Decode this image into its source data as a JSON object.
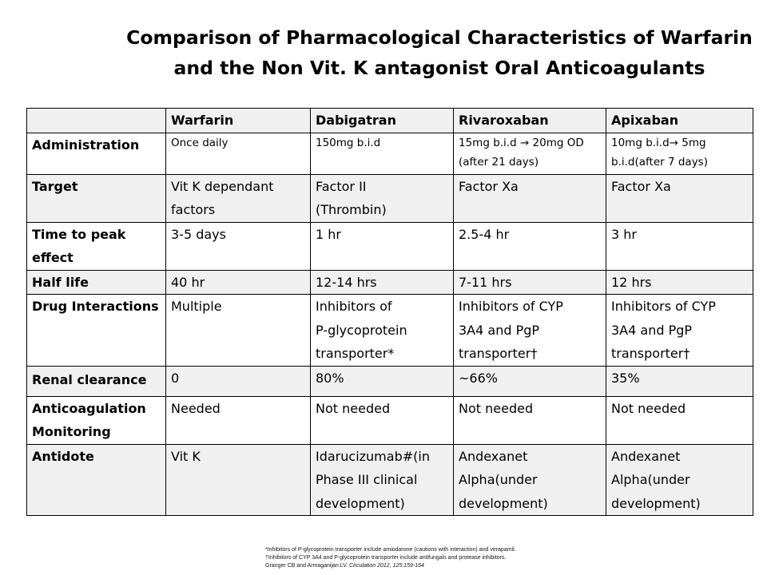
{
  "title": {
    "line1": "Comparison of Pharmacological Characteristics of Warfarin",
    "line2": "and the Non Vit. K antagonist Oral Anticoagulants"
  },
  "table": {
    "columns": [
      "",
      "Warfarin",
      "Dabigatran",
      "Rivaroxaban",
      "Apixaban"
    ],
    "rows": [
      {
        "label": [
          "Administration"
        ],
        "cells": [
          [
            "Once daily"
          ],
          [
            "150mg b.i.d"
          ],
          [
            "15mg b.i.d → 20mg OD",
            "(after 21 days)"
          ],
          [
            "10mg b.i.d→ 5mg",
            "b.i.d(after 7 days)"
          ]
        ]
      },
      {
        "label": [
          "Target"
        ],
        "cells": [
          [
            "Vit K dependant",
            "factors"
          ],
          [
            "Factor II",
            "(Thrombin)"
          ],
          [
            "Factor Xa"
          ],
          [
            "Factor Xa"
          ]
        ]
      },
      {
        "label": [
          "Time to peak",
          "effect"
        ],
        "cells": [
          [
            "3-5 days"
          ],
          [
            "1 hr"
          ],
          [
            "2.5-4 hr"
          ],
          [
            "3 hr"
          ]
        ]
      },
      {
        "label": [
          "Half life"
        ],
        "cells": [
          [
            "40 hr"
          ],
          [
            "12-14 hrs"
          ],
          [
            "7-11 hrs"
          ],
          [
            "12 hrs"
          ]
        ]
      },
      {
        "label": [
          "Drug Interactions"
        ],
        "cells": [
          [
            "Multiple"
          ],
          [
            "Inhibitors of",
            "P-glycoprotein",
            "transporter*"
          ],
          [
            "Inhibitors of CYP",
            "3A4 and PgP",
            "transporter†"
          ],
          [
            "Inhibitors of CYP",
            "3A4 and PgP",
            "transporter†"
          ]
        ]
      },
      {
        "label": [
          "Renal clearance"
        ],
        "cells": [
          [
            "0"
          ],
          [
            "80%"
          ],
          [
            "~66%"
          ],
          [
            "35%"
          ]
        ]
      },
      {
        "label": [
          "Anticoagulation",
          "Monitoring"
        ],
        "cells": [
          [
            "Needed"
          ],
          [
            "Not needed"
          ],
          [
            "Not needed"
          ],
          [
            "Not needed"
          ]
        ]
      },
      {
        "label": [
          "Antidote"
        ],
        "cells": [
          [
            "Vit K"
          ],
          [
            "Idarucizumab#(in",
            "Phase III clinical",
            "development)"
          ],
          [
            "Andexanet",
            "Alpha(under",
            "development)"
          ],
          [
            "Andexanet",
            "Alpha(under",
            "development)"
          ]
        ]
      }
    ]
  },
  "footer": {
    "note1": "*Inhibitors of P-glycoprotein transporter include amiodarone (cautions with interaction) and verapamil.",
    "note2": "†Inhibitors of CYP 3A4 and P-glycoprotein transporter include antifungals and protease inhibitors.",
    "citation_authors": "Granger CB and Armaganijan LV. ",
    "citation_journal": "Circulation 2012, 125:159-164"
  }
}
